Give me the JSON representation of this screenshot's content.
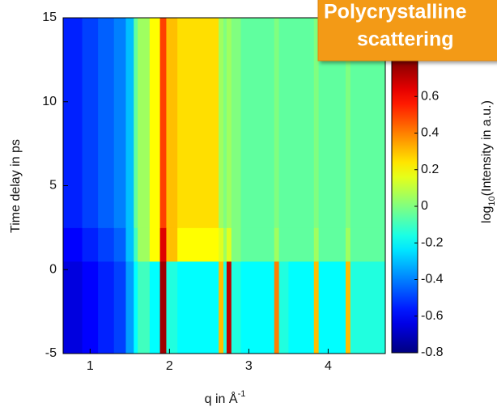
{
  "chart_data": {
    "type": "heatmap",
    "xbins": [
      0.66,
      0.9,
      1.1,
      1.3,
      1.45,
      1.55,
      1.6,
      1.75,
      1.88,
      1.96,
      2.1,
      2.62,
      2.68,
      2.72,
      2.78,
      2.9,
      3.32,
      3.38,
      3.5,
      3.82,
      3.88,
      4.22,
      4.28,
      4.72
    ],
    "ybins": [
      -5,
      0.5,
      2.5,
      15
    ],
    "values": [
      [
        -0.65,
        -0.6,
        -0.55,
        -0.5,
        -0.35,
        -0.2,
        -0.1,
        -0.2,
        0.75,
        -0.15,
        -0.2,
        0.3,
        -0.15,
        0.7,
        -0.15,
        -0.2,
        0.4,
        -0.15,
        -0.2,
        0.3,
        -0.2,
        0.3,
        -0.15
      ],
      [
        -0.6,
        -0.55,
        -0.5,
        -0.45,
        -0.3,
        -0.1,
        0.05,
        0.2,
        0.65,
        0.3,
        0.2,
        0.15,
        0.05,
        0.15,
        0,
        -0.05,
        0.05,
        -0.05,
        -0.05,
        0.05,
        -0.05,
        0.05,
        -0.05
      ],
      [
        -0.55,
        -0.5,
        -0.45,
        -0.4,
        -0.3,
        -0.05,
        0.05,
        0.2,
        0.5,
        0.3,
        0.25,
        0.05,
        0,
        0.05,
        0,
        -0.05,
        0,
        -0.05,
        -0.05,
        0,
        -0.05,
        0,
        -0.05
      ]
    ],
    "xlim": [
      0.66,
      4.72
    ],
    "ylim": [
      -5,
      15
    ],
    "xticks": [
      1,
      2,
      3,
      4
    ],
    "yticks": [
      -5,
      0,
      5,
      10,
      15
    ],
    "xlabel": {
      "text": "q in Å",
      "superscript": "-1"
    },
    "ylabel": "Time delay in ps",
    "colorbar": {
      "colormap": "jet",
      "lim": [
        -0.8,
        0.8
      ],
      "ticks": [
        -0.8,
        -0.6,
        -0.4,
        -0.2,
        0,
        0.2,
        0.4,
        0.6
      ],
      "label": {
        "prefix": "log",
        "subscript": "10",
        "suffix": "(Intensity in a.u.)"
      }
    },
    "title": [
      "Polycrystalline",
      "scattering"
    ]
  }
}
